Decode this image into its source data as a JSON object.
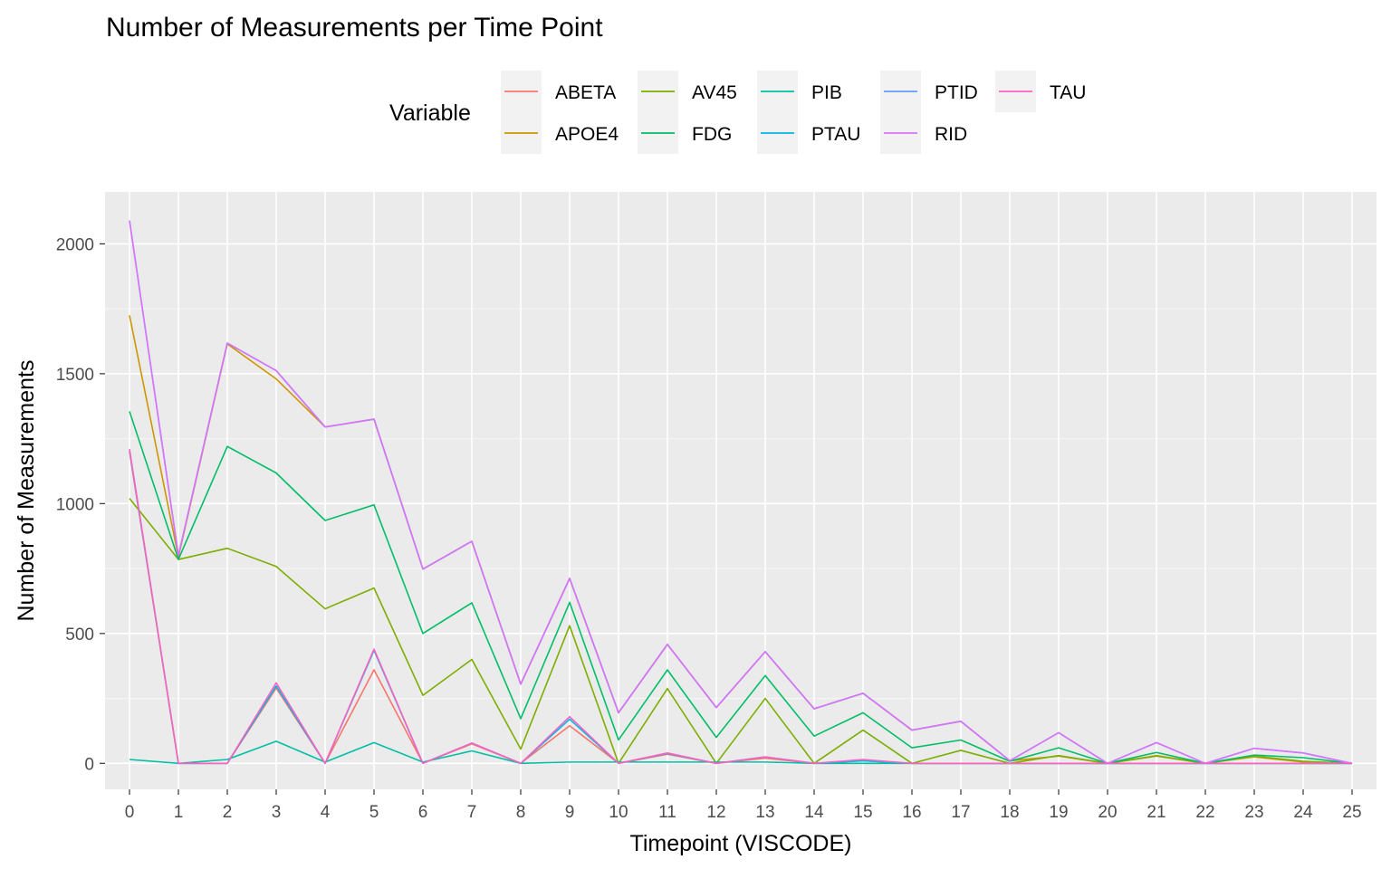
{
  "chart_data": {
    "type": "line",
    "title": "Number of Measurements per Time Point",
    "xlabel": "Timepoint (VISCODE)",
    "ylabel": "Number of Measurements",
    "legend_title": "Variable",
    "legend_position": "top",
    "xlim": [
      -0.5,
      25.5
    ],
    "ylim": [
      -100,
      2200
    ],
    "yticks": [
      0,
      500,
      1000,
      1500,
      2000
    ],
    "grid": true,
    "x": [
      0,
      1,
      2,
      3,
      4,
      5,
      6,
      7,
      8,
      9,
      10,
      11,
      12,
      13,
      14,
      15,
      16,
      17,
      18,
      19,
      20,
      21,
      22,
      23,
      24,
      25
    ],
    "series": [
      {
        "name": "ABETA",
        "color": "#F8766D",
        "values": [
          1200,
          0,
          0,
          290,
          0,
          360,
          0,
          75,
          0,
          145,
          0,
          35,
          0,
          20,
          0,
          10,
          0,
          0,
          0,
          0,
          0,
          0,
          0,
          0,
          0,
          0
        ]
      },
      {
        "name": "APOE4",
        "color": "#CD9600",
        "values": [
          1725,
          795,
          1615,
          1480,
          1295,
          1325,
          748,
          855,
          305,
          712,
          195,
          458,
          215,
          430,
          210,
          270,
          128,
          162,
          10,
          28,
          0,
          30,
          0,
          25,
          5,
          0
        ]
      },
      {
        "name": "AV45",
        "color": "#7CAE00",
        "values": [
          1020,
          785,
          828,
          758,
          595,
          675,
          262,
          400,
          55,
          530,
          0,
          288,
          0,
          250,
          0,
          128,
          0,
          50,
          0,
          30,
          0,
          28,
          0,
          28,
          8,
          0
        ]
      },
      {
        "name": "FDG",
        "color": "#00BE67",
        "values": [
          1355,
          785,
          1220,
          1118,
          935,
          995,
          500,
          618,
          172,
          620,
          90,
          360,
          100,
          338,
          105,
          195,
          60,
          90,
          8,
          60,
          0,
          42,
          0,
          32,
          22,
          0
        ]
      },
      {
        "name": "PIB",
        "color": "#00BFA4",
        "values": [
          15,
          0,
          15,
          85,
          5,
          80,
          5,
          48,
          0,
          5,
          5,
          5,
          5,
          5,
          0,
          0,
          0,
          0,
          0,
          0,
          0,
          0,
          0,
          0,
          0,
          0
        ]
      },
      {
        "name": "PTAU",
        "color": "#00B8E7",
        "values": [
          1205,
          0,
          0,
          298,
          0,
          435,
          0,
          78,
          0,
          170,
          0,
          38,
          0,
          25,
          0,
          10,
          0,
          0,
          0,
          0,
          0,
          0,
          0,
          0,
          0,
          0
        ]
      },
      {
        "name": "PTID",
        "color": "#619CFF",
        "values": [
          2090,
          800,
          1618,
          1512,
          1295,
          1325,
          748,
          855,
          305,
          712,
          195,
          458,
          215,
          430,
          210,
          270,
          128,
          162,
          10,
          118,
          0,
          80,
          0,
          58,
          40,
          0
        ]
      },
      {
        "name": "RID",
        "color": "#DB72FB",
        "values": [
          2090,
          800,
          1618,
          1512,
          1295,
          1325,
          748,
          855,
          305,
          712,
          195,
          458,
          215,
          430,
          210,
          270,
          128,
          162,
          10,
          118,
          0,
          80,
          0,
          58,
          40,
          0
        ]
      },
      {
        "name": "TAU",
        "color": "#FF61C3",
        "values": [
          1210,
          0,
          0,
          310,
          0,
          440,
          0,
          78,
          0,
          180,
          0,
          40,
          0,
          25,
          0,
          15,
          0,
          0,
          0,
          0,
          0,
          0,
          0,
          0,
          0,
          0
        ]
      }
    ]
  }
}
